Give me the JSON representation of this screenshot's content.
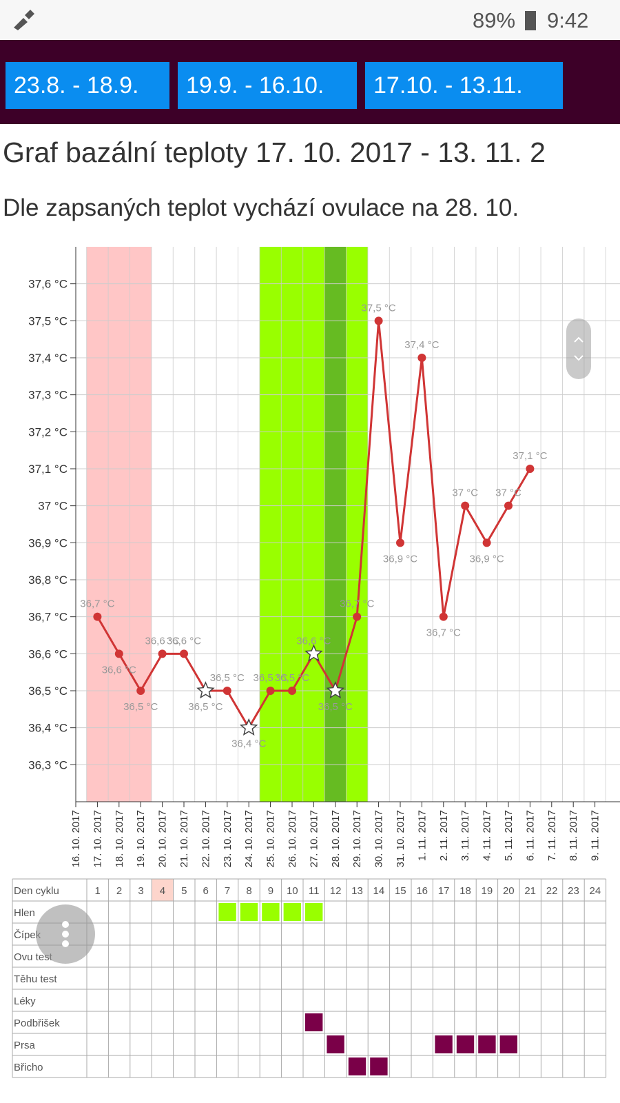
{
  "status_bar": {
    "battery": "89%",
    "time": "9:42"
  },
  "nav": {
    "buttons": [
      "23.8. - 18.9.",
      "19.9. - 16.10.",
      "17.10. - 13.11."
    ]
  },
  "header": {
    "title": "Graf bazální teploty 17. 10. 2017 - 13. 11. 2",
    "subtitle": "Dle zapsaných teplot vychází ovulace na 28. 10."
  },
  "chart_data": {
    "type": "line",
    "categories": [
      "16. 10. 2017",
      "17. 10. 2017",
      "18. 10. 2017",
      "19. 10. 2017",
      "20. 10. 2017",
      "21. 10. 2017",
      "22. 10. 2017",
      "23. 10. 2017",
      "24. 10. 2017",
      "25. 10. 2017",
      "26. 10. 2017",
      "27. 10. 2017",
      "28. 10. 2017",
      "29. 10. 2017",
      "30. 10. 2017",
      "31. 10. 2017",
      "1. 11. 2017",
      "2. 11. 2017",
      "3. 11. 2017",
      "4. 11. 2017",
      "5. 11. 2017",
      "6. 11. 2017",
      "7. 11. 2017",
      "8. 11. 2017",
      "9. 11. 2017"
    ],
    "series": [
      {
        "color": "#d03535",
        "values": [
          null,
          36.7,
          36.6,
          36.5,
          36.6,
          36.6,
          36.5,
          36.5,
          36.4,
          36.5,
          36.5,
          36.6,
          36.5,
          36.7,
          37.5,
          36.9,
          37.4,
          36.7,
          37.0,
          36.9,
          37.0,
          37.1,
          null,
          null,
          null
        ],
        "value_labels": [
          null,
          "36,7 °C",
          "36,6 °C",
          "36,5 °C",
          "36,6 °C",
          "36,6 °C",
          "36,5 °C",
          "36,5 °C",
          "36,4 °C",
          "36,5 °C",
          "36,5 °C",
          "36,6 °C",
          "36,5 °C",
          "36,7 °C",
          "37,5 °C",
          "36,9 °C",
          "37,4 °C",
          "36,7 °C",
          "37 °C",
          "36,9 °C",
          "37 °C",
          "37,1 °C",
          null,
          null,
          null
        ],
        "markers": [
          null,
          "circle",
          "circle",
          "circle",
          "circle",
          "circle",
          "star",
          "circle",
          "star",
          "circle",
          "circle",
          "star",
          "star",
          "circle",
          "circle",
          "circle",
          "circle",
          "circle",
          "circle",
          "circle",
          "circle",
          "circle",
          null,
          null,
          null
        ]
      }
    ],
    "ylim": [
      36.2,
      37.7
    ],
    "yticks": [
      {
        "value": 36.3,
        "label": "36,3 °C"
      },
      {
        "value": 36.4,
        "label": "36,4 °C"
      },
      {
        "value": 36.5,
        "label": "36,5 °C"
      },
      {
        "value": 36.6,
        "label": "36,6 °C"
      },
      {
        "value": 36.7,
        "label": "36,7 °C"
      },
      {
        "value": 36.8,
        "label": "36,8 °C"
      },
      {
        "value": 36.9,
        "label": "36,9 °C"
      },
      {
        "value": 37,
        "label": "37 °C"
      },
      {
        "value": 37.1,
        "label": "37,1 °C"
      },
      {
        "value": 37.2,
        "label": "37,2 °C"
      },
      {
        "value": 37.3,
        "label": "37,3 °C"
      },
      {
        "value": 37.4,
        "label": "37,4 °C"
      },
      {
        "value": 37.5,
        "label": "37,5 °C"
      },
      {
        "value": 37.6,
        "label": "37,6 °C"
      }
    ],
    "bands": [
      {
        "from": "17. 10. 2017",
        "to": "19. 10. 2017",
        "color": "#ffc6c6"
      },
      {
        "from": "25. 10. 2017",
        "to": "29. 10. 2017",
        "color": "#99ff00"
      },
      {
        "from": "28. 10. 2017",
        "to": "28. 10. 2017",
        "color": "#66bb22"
      }
    ],
    "grid": true
  },
  "table": {
    "header": "Den cyklu",
    "days": [
      1,
      2,
      3,
      4,
      5,
      6,
      7,
      8,
      9,
      10,
      11,
      12,
      13,
      14,
      15,
      16,
      17,
      18,
      19,
      20,
      21,
      22,
      23,
      24
    ],
    "highlighted_day": 4,
    "highlight_color": "#fdd5cc",
    "rows": [
      {
        "label": "Hlen",
        "color": "#99ff00",
        "marked": [
          7,
          8,
          9,
          10,
          11
        ]
      },
      {
        "label": "Čípek",
        "marked": []
      },
      {
        "label": "Ovu test",
        "marked": []
      },
      {
        "label": "Těhu test",
        "marked": []
      },
      {
        "label": "Léky",
        "marked": []
      },
      {
        "label": "Podbřišek",
        "color": "#7a0048",
        "marked": [
          11
        ]
      },
      {
        "label": "Prsa",
        "color": "#7a0048",
        "marked": [
          12,
          17,
          18,
          19,
          20
        ]
      },
      {
        "label": "Břicho",
        "color": "#7a0048",
        "marked": [
          13,
          14
        ]
      }
    ]
  }
}
